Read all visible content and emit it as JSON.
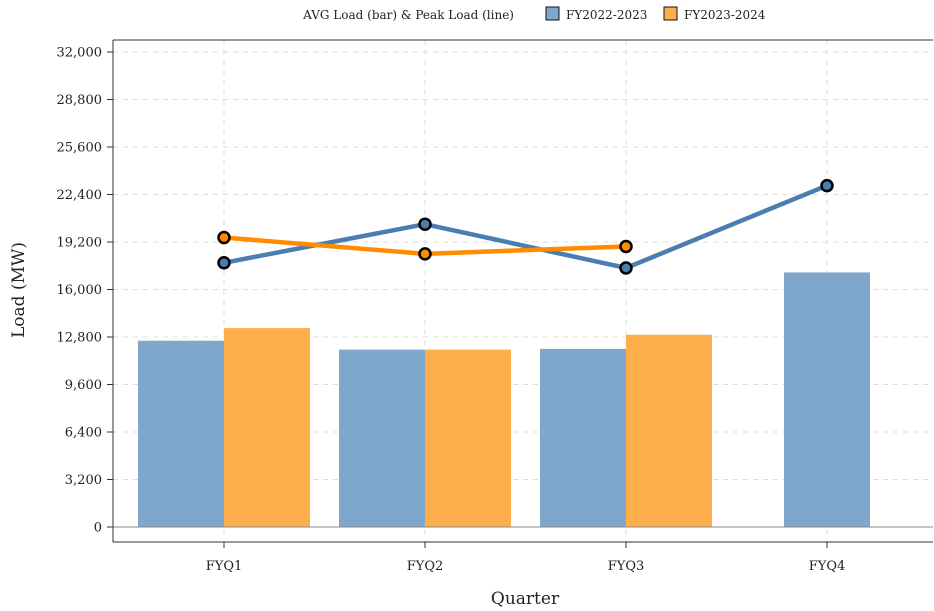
{
  "chart_data": {
    "type": "bar",
    "title": "",
    "legend_title": "AVG Load (bar) & Peak Load (line)",
    "xlabel": "Quarter",
    "ylabel": "Load (MW)",
    "categories": [
      "FYQ1",
      "FYQ2",
      "FYQ3",
      "FYQ4"
    ],
    "ylim": [
      0,
      32000
    ],
    "yticks": [
      0,
      3200,
      6400,
      9600,
      12800,
      16000,
      19200,
      22400,
      25600,
      28800,
      32000
    ],
    "ytick_labels": [
      "0",
      "3,200",
      "6,400",
      "9,600",
      "12,800",
      "16,000",
      "19,200",
      "22,400",
      "25,600",
      "28,800",
      "32,000"
    ],
    "grid": true,
    "legend_position": "top",
    "series": [
      {
        "name": "FY2022-2023",
        "color": "#4a7eb0",
        "bar_color": "#7fa7cb",
        "avg_load": [
          12550,
          11950,
          12000,
          17150
        ],
        "peak_load": [
          17800,
          20400,
          17450,
          23000
        ]
      },
      {
        "name": "FY2023-2024",
        "color": "#ff8c00",
        "bar_color": "#ffae4c",
        "avg_load": [
          13400,
          11950,
          12950,
          null
        ],
        "peak_load": [
          19500,
          18400,
          18900,
          null
        ]
      }
    ]
  }
}
